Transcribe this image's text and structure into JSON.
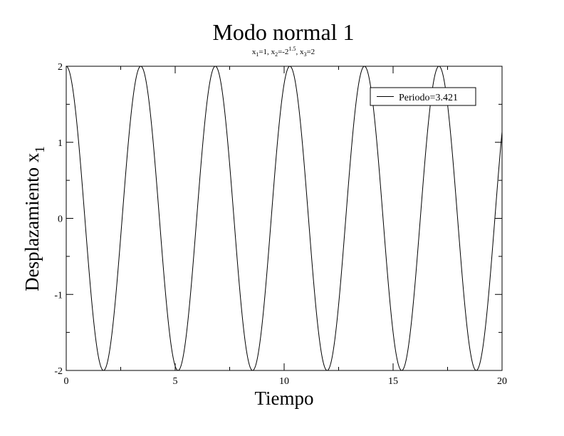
{
  "chart_data": {
    "type": "line",
    "title": "Modo normal 1",
    "subtitle": {
      "x1_label": "x",
      "x1_sub": "1",
      "x1_value": "=1, ",
      "x2_label": "x",
      "x2_sub": "2",
      "x2_value": "=-2",
      "x2_sup": "1.5",
      "x2_sep": ", ",
      "x3_label": "x",
      "x3_sub": "3",
      "x3_value": "=2"
    },
    "xlabel": "Tiempo",
    "ylabel": "Desplazamiento x",
    "ylabel_sub": "1",
    "xlim": [
      0,
      20
    ],
    "ylim": [
      -2,
      2
    ],
    "xticks": [
      0,
      5,
      10,
      15,
      20
    ],
    "yticks": [
      -2,
      -1,
      0,
      1,
      2
    ],
    "x_minor_step": 2.5,
    "y_minor_step": 0.5,
    "grid": false,
    "legend_position": "top-right",
    "series": [
      {
        "name": "Periodo=3.421",
        "color": "#000000",
        "function": "amplitude*cos(2*pi*t/period)",
        "amplitude": 2,
        "period": 3.421,
        "t_range": [
          0,
          20
        ]
      }
    ]
  }
}
